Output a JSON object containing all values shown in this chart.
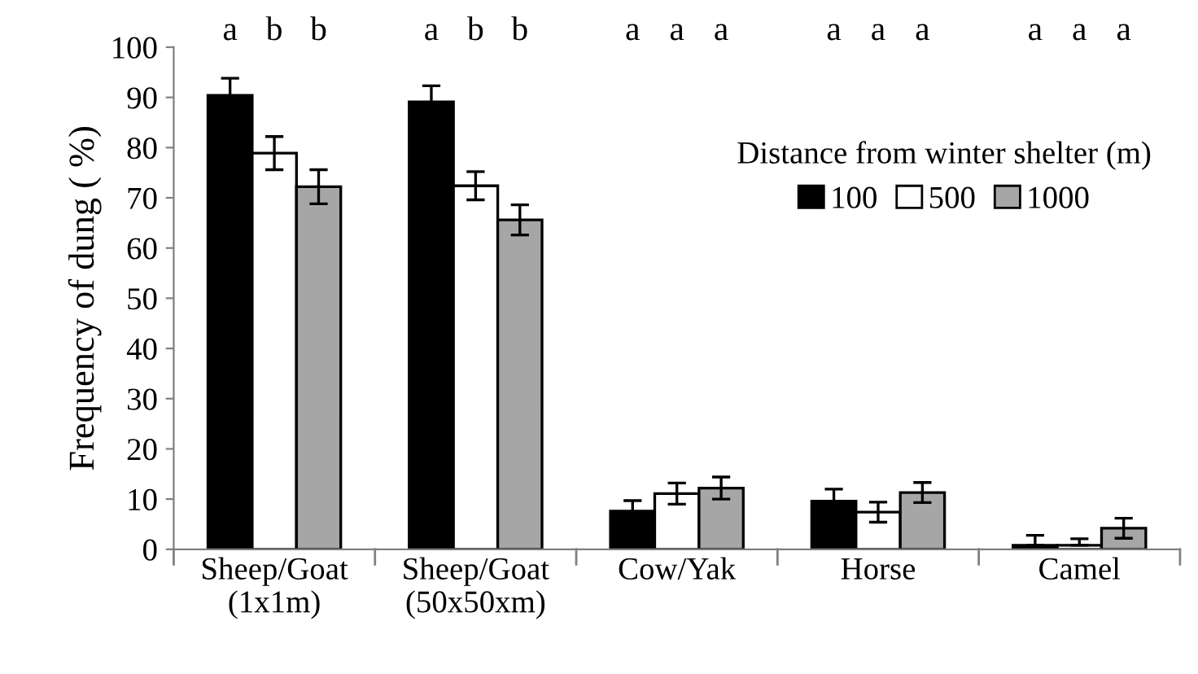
{
  "chart_data": {
    "type": "bar",
    "ylabel": "Frequency of dung ( %)",
    "legend_title": "Distance from winter shelter (m)",
    "legend": "top right",
    "grid": false,
    "categories": [
      "Sheep/Goat\n(1x1m)",
      "Sheep/Goat\n(50x50xm)",
      "Cow/Yak",
      "Horse",
      "Camel"
    ],
    "ylim": [
      0,
      100
    ],
    "yticks": [
      0,
      10,
      20,
      30,
      40,
      50,
      60,
      70,
      80,
      90,
      100
    ],
    "series": [
      {
        "name": "100",
        "color": "#000000",
        "values": [
          90.4,
          89.1,
          7.6,
          9.6,
          0.8
        ],
        "errors": [
          3.4,
          3.2,
          2.1,
          2.4,
          [
            0.8,
            2.8
          ]
        ]
      },
      {
        "name": "500",
        "color": "#ffffff",
        "values": [
          78.9,
          72.4,
          11.1,
          7.4,
          0.8
        ],
        "errors": [
          3.3,
          2.8,
          2.1,
          2.0,
          [
            0.8,
            2.1
          ]
        ]
      },
      {
        "name": "1000",
        "color": "#a6a6a6",
        "values": [
          72.2,
          65.6,
          12.2,
          11.3,
          4.2
        ],
        "errors": [
          3.4,
          3.0,
          2.2,
          2.0,
          2.0
        ]
      }
    ],
    "annotations": [
      "a",
      "b",
      "b",
      "a",
      "b",
      "b",
      "a",
      "a",
      "a",
      "a",
      "a",
      "a",
      "a",
      "a",
      "a"
    ]
  }
}
